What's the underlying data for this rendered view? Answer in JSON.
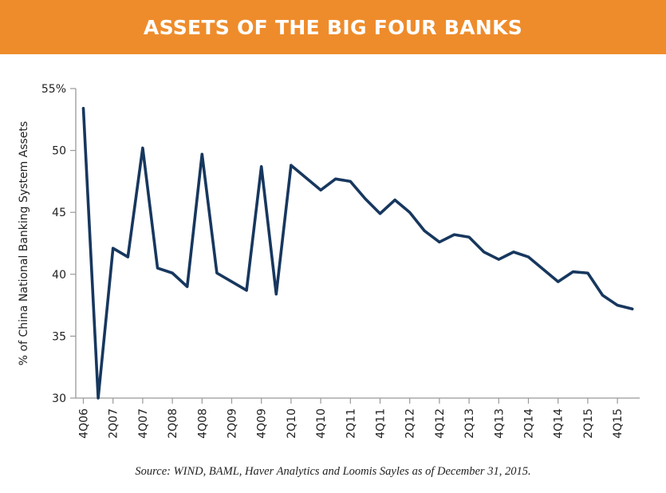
{
  "header": {
    "title": "ASSETS OF THE BIG FOUR BANKS"
  },
  "source": "Source: WIND, BAML, Haver Analytics and Loomis Sayles as of December 31, 2015.",
  "chart_data": {
    "type": "line",
    "title": "ASSETS OF THE BIG FOUR BANKS",
    "xlabel": "",
    "ylabel": "% of China National Banking System Assets",
    "ylim": [
      30,
      55
    ],
    "yticks": [
      30,
      35,
      40,
      45,
      50,
      55
    ],
    "ytick_labels": [
      "30",
      "35",
      "40",
      "45",
      "50",
      "55%"
    ],
    "xtick_labels": [
      "4Q06",
      "2Q07",
      "4Q07",
      "2Q08",
      "4Q08",
      "2Q09",
      "4Q09",
      "2Q10",
      "4Q10",
      "2Q11",
      "4Q11",
      "2Q12",
      "4Q12",
      "2Q13",
      "4Q13",
      "2Q14",
      "4Q14",
      "2Q15",
      "4Q15"
    ],
    "grid": false,
    "line_color": "#17375E",
    "series": [
      {
        "x": [
          "4Q06",
          "1Q07",
          "2Q07",
          "3Q07",
          "4Q07",
          "1Q08",
          "2Q08",
          "3Q08",
          "4Q08",
          "1Q09",
          "2Q09",
          "3Q09",
          "4Q09",
          "1Q10",
          "2Q10",
          "3Q10",
          "4Q10",
          "1Q11",
          "2Q11",
          "3Q11",
          "4Q11",
          "1Q12",
          "2Q12",
          "3Q12",
          "4Q12",
          "1Q13",
          "2Q13",
          "3Q13",
          "4Q13",
          "1Q14",
          "2Q14",
          "3Q14",
          "4Q14",
          "1Q15",
          "2Q15",
          "3Q15",
          "4Q15",
          "1Q16"
        ],
        "values": [
          53.4,
          30.0,
          42.1,
          41.4,
          50.2,
          40.5,
          40.1,
          39.0,
          49.7,
          40.1,
          39.4,
          38.7,
          48.7,
          38.4,
          48.8,
          47.8,
          46.8,
          47.7,
          47.5,
          46.1,
          44.9,
          46.0,
          45.0,
          43.5,
          42.6,
          43.2,
          43.0,
          41.8,
          41.2,
          41.8,
          41.4,
          40.4,
          39.4,
          40.2,
          40.1,
          38.3,
          37.5,
          37.2
        ]
      }
    ]
  }
}
